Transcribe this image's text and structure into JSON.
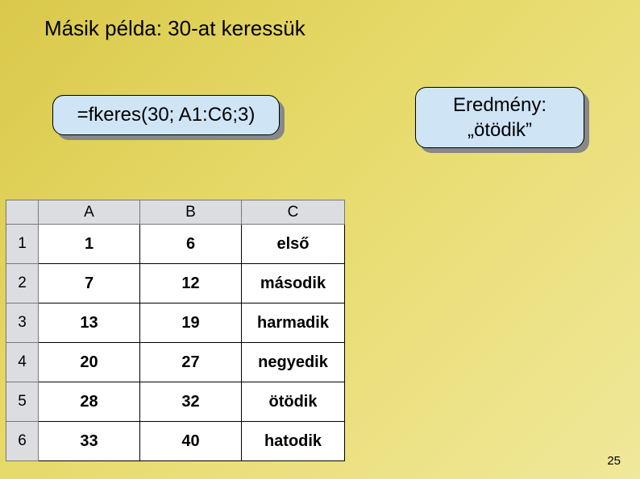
{
  "title": "Másik példa: 30-at keressük",
  "formula": "=fkeres(30; A1:C6;3)",
  "result": {
    "label": "Eredmény:",
    "value": "„ötödik”"
  },
  "table": {
    "columns": [
      "A",
      "B",
      "C"
    ],
    "rows": [
      {
        "n": "1",
        "a": "1",
        "b": "6",
        "c": "első"
      },
      {
        "n": "2",
        "a": "7",
        "b": "12",
        "c": "második"
      },
      {
        "n": "3",
        "a": "13",
        "b": "19",
        "c": "harmadik"
      },
      {
        "n": "4",
        "a": "20",
        "b": "27",
        "c": "negyedik"
      },
      {
        "n": "5",
        "a": "28",
        "b": "32",
        "c": "ötödik"
      },
      {
        "n": "6",
        "a": "33",
        "b": "40",
        "c": "hatodik"
      }
    ]
  },
  "page_number": "25",
  "colors": {
    "pill_bg": "#cfe4f5",
    "header_bg": "#dcdde1"
  }
}
